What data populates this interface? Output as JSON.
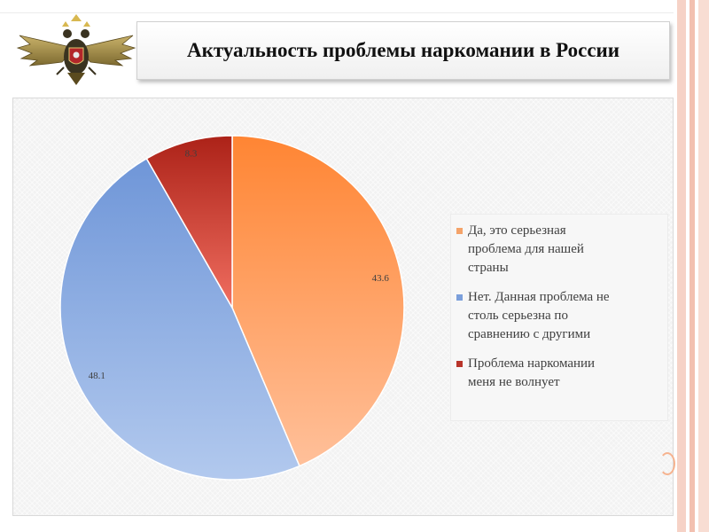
{
  "slide": {
    "title": "Актуальность проблемы наркомании в России"
  },
  "emblem": {
    "icon": "double-headed-eagle-emblem"
  },
  "chart_data": {
    "type": "pie",
    "title": "",
    "series": [
      {
        "categories": [
          "Да, это серьезная проблема для нашей страны",
          "Нет. Данная проблема не столь серьезна по сравнению с другими",
          "Проблема наркомании меня не волнует"
        ],
        "values": [
          43.6,
          48.1,
          8.3
        ]
      }
    ],
    "categories": [
      "Да, это серьезная проблема для нашей страны",
      "Нет. Данная проблема не столь серьезна по сравнению с другими",
      "Проблема наркомании меня не волнует"
    ],
    "values": [
      43.6,
      48.1,
      8.3
    ],
    "value_labels": [
      "43.6",
      "48.1",
      "8.3"
    ],
    "legend_position": "right",
    "start_angle_deg": 0,
    "direction": "clockwise",
    "colors": [
      {
        "top": "#ff8533",
        "bottom": "#ffc09a"
      },
      {
        "top": "#6f96d8",
        "bottom": "#b2c9ee"
      },
      {
        "top": "#ac2218",
        "bottom": "#f06e60"
      }
    ]
  },
  "legend": {
    "items": [
      {
        "lines": [
          "Да, это серьезная",
          "проблема для нашей",
          "страны"
        ],
        "color": "#f4a36a"
      },
      {
        "lines": [
          "Нет. Данная проблема не",
          "столь серьезна по",
          "сравнению с другими"
        ],
        "color": "#7b9fdb"
      },
      {
        "lines": [
          "Проблема наркомании",
          "меня не волнует"
        ],
        "color": "#b8342a"
      }
    ]
  }
}
